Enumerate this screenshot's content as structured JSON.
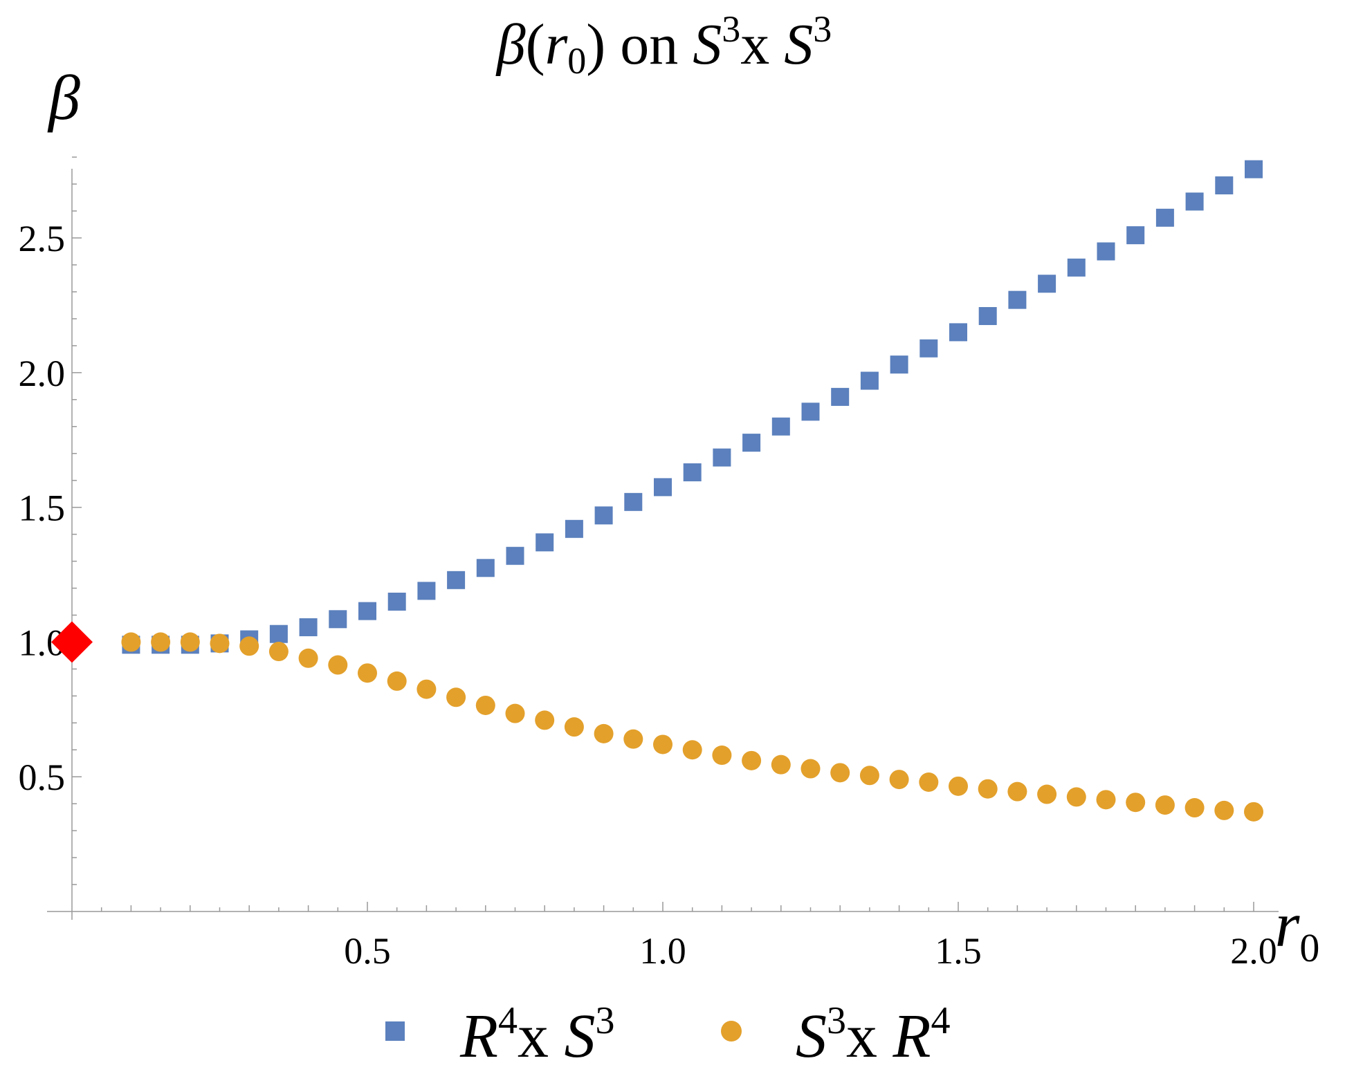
{
  "chart_data": {
    "type": "scatter",
    "title": "β(r0) on S3x S3",
    "title_parts": {
      "beta": "β",
      "open": "(",
      "r": "r",
      "r_sub": "0",
      "close": ")",
      "mid": " on ",
      "s1": "S",
      "s1_sup": "3",
      "x": "x ",
      "s2": "S",
      "s2_sup": "3"
    },
    "xlabel": "r0",
    "xlabel_parts": {
      "main": "r",
      "sub": "0"
    },
    "ylabel": "β",
    "xlim": [
      -0.04,
      2.04
    ],
    "ylim": [
      0.0,
      2.88
    ],
    "x_ticks": [
      {
        "value": 0.5,
        "label": "0.5"
      },
      {
        "value": 1.0,
        "label": "1.0"
      },
      {
        "value": 1.5,
        "label": "1.5"
      },
      {
        "value": 2.0,
        "label": "2.0"
      }
    ],
    "y_ticks": [
      {
        "value": 0.5,
        "label": "0.5"
      },
      {
        "value": 1.0,
        "label": "1.0"
      },
      {
        "value": 1.5,
        "label": "1.5"
      },
      {
        "value": 2.0,
        "label": "2.0"
      },
      {
        "value": 2.5,
        "label": "2.5"
      }
    ],
    "grid": false,
    "legend_position": "bottom",
    "series": [
      {
        "name": "R4x S3",
        "legend_parts": {
          "a": "R",
          "a_sup": "4",
          "x": "x ",
          "b": "S",
          "b_sup": "3"
        },
        "marker": "square",
        "color": "#5b80bd",
        "x": [
          0.1,
          0.15,
          0.2,
          0.25,
          0.3,
          0.35,
          0.4,
          0.45,
          0.5,
          0.55,
          0.6,
          0.65,
          0.7,
          0.75,
          0.8,
          0.85,
          0.9,
          0.95,
          1.0,
          1.05,
          1.1,
          1.15,
          1.2,
          1.25,
          1.3,
          1.35,
          1.4,
          1.45,
          1.5,
          1.55,
          1.6,
          1.65,
          1.7,
          1.75,
          1.8,
          1.85,
          1.9,
          1.95,
          2.0
        ],
        "y": [
          0.99,
          0.99,
          0.99,
          0.995,
          1.01,
          1.03,
          1.055,
          1.085,
          1.115,
          1.15,
          1.19,
          1.23,
          1.275,
          1.32,
          1.37,
          1.42,
          1.47,
          1.52,
          1.575,
          1.63,
          1.685,
          1.74,
          1.8,
          1.855,
          1.91,
          1.97,
          2.03,
          2.09,
          2.15,
          2.21,
          2.27,
          2.33,
          2.39,
          2.45,
          2.51,
          2.575,
          2.635,
          2.695,
          2.755
        ]
      },
      {
        "name": "S3x R4",
        "legend_parts": {
          "a": "S",
          "a_sup": "3",
          "x": "x ",
          "b": "R",
          "b_sup": "4"
        },
        "marker": "circle",
        "color": "#e3a02b",
        "x": [
          0.1,
          0.15,
          0.2,
          0.25,
          0.3,
          0.35,
          0.4,
          0.45,
          0.5,
          0.55,
          0.6,
          0.65,
          0.7,
          0.75,
          0.8,
          0.85,
          0.9,
          0.95,
          1.0,
          1.05,
          1.1,
          1.15,
          1.2,
          1.25,
          1.3,
          1.35,
          1.4,
          1.45,
          1.5,
          1.55,
          1.6,
          1.65,
          1.7,
          1.75,
          1.8,
          1.85,
          1.9,
          1.95,
          2.0
        ],
        "y": [
          1.0,
          1.0,
          1.0,
          0.995,
          0.985,
          0.965,
          0.94,
          0.915,
          0.885,
          0.855,
          0.825,
          0.795,
          0.765,
          0.735,
          0.71,
          0.685,
          0.66,
          0.64,
          0.62,
          0.6,
          0.58,
          0.56,
          0.545,
          0.53,
          0.515,
          0.505,
          0.49,
          0.48,
          0.465,
          0.455,
          0.445,
          0.435,
          0.425,
          0.415,
          0.405,
          0.395,
          0.385,
          0.375,
          0.37
        ]
      },
      {
        "name": "",
        "marker": "diamond",
        "color": "#ff0000",
        "x": [
          0.0
        ],
        "y": [
          1.0
        ]
      }
    ]
  }
}
